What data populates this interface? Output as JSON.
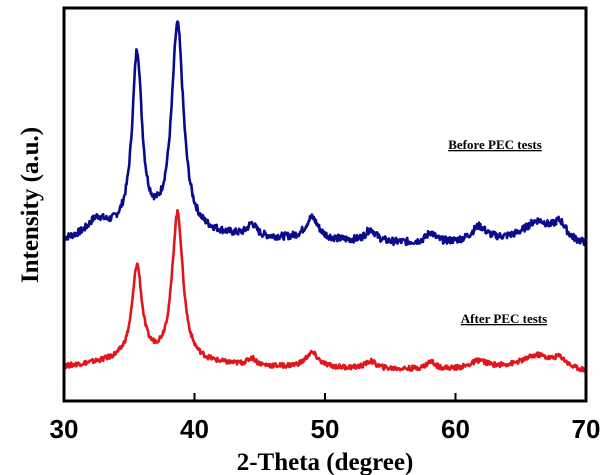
{
  "chart_data": {
    "type": "line",
    "xlabel": "2-Theta (degree)",
    "ylabel": "Intensity (a.u.)",
    "xlim": [
      30,
      70
    ],
    "x_ticks": [
      30,
      40,
      50,
      60,
      70
    ],
    "y_ticks_shown": false,
    "grid": false,
    "legend": "none",
    "annotations": [
      "Before PEC tests",
      "After PEC tests"
    ],
    "series": [
      {
        "label": "Before PEC tests",
        "color": "#0a0a8c",
        "offset": 52,
        "noise": 1.5,
        "baseline": [
          [
            30,
            2
          ],
          [
            35,
            6
          ],
          [
            45,
            3
          ],
          [
            55,
            1
          ],
          [
            60,
            1
          ],
          [
            65,
            2
          ],
          [
            70,
            0
          ]
        ],
        "peaks": [
          {
            "center": 32.5,
            "height": 6,
            "width": 0.8
          },
          {
            "center": 35.6,
            "height": 72,
            "width": 0.45
          },
          {
            "center": 38.7,
            "height": 85,
            "width": 0.55
          },
          {
            "center": 44.4,
            "height": 5,
            "width": 0.4
          },
          {
            "center": 49.0,
            "height": 9,
            "width": 0.6
          },
          {
            "center": 53.5,
            "height": 5,
            "width": 0.5
          },
          {
            "center": 58.1,
            "height": 4,
            "width": 0.4
          },
          {
            "center": 61.8,
            "height": 6,
            "width": 0.7
          },
          {
            "center": 66.3,
            "height": 8,
            "width": 1.2
          },
          {
            "center": 68.0,
            "height": 7,
            "width": 0.6
          }
        ]
      },
      {
        "label": "After PEC tests",
        "color": "#e0161c",
        "offset": 0,
        "noise": 1.0,
        "baseline": [
          [
            30,
            2
          ],
          [
            35,
            5
          ],
          [
            45,
            2
          ],
          [
            55,
            1
          ],
          [
            60,
            1
          ],
          [
            65,
            2
          ],
          [
            70,
            0
          ]
        ],
        "peaks": [
          {
            "center": 35.6,
            "height": 38,
            "width": 0.45
          },
          {
            "center": 38.7,
            "height": 61,
            "width": 0.5
          },
          {
            "center": 44.4,
            "height": 3,
            "width": 0.4
          },
          {
            "center": 49.0,
            "height": 6,
            "width": 0.6
          },
          {
            "center": 53.5,
            "height": 3,
            "width": 0.5
          },
          {
            "center": 58.1,
            "height": 3,
            "width": 0.4
          },
          {
            "center": 61.8,
            "height": 3,
            "width": 0.7
          },
          {
            "center": 66.3,
            "height": 5,
            "width": 1.2
          },
          {
            "center": 68.0,
            "height": 4,
            "width": 0.6
          }
        ]
      }
    ]
  }
}
